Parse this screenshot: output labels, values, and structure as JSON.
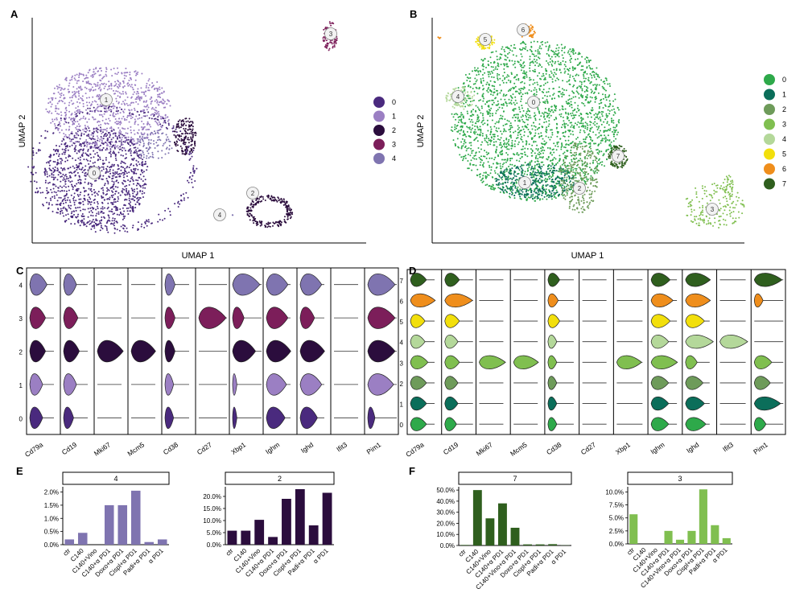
{
  "panels": {
    "A": {
      "label": "A",
      "xlabel": "UMAP 1",
      "ylabel": "UMAP 2",
      "legend": [
        {
          "id": "0",
          "color": "#4a2a7e"
        },
        {
          "id": "1",
          "color": "#9b7fc3"
        },
        {
          "id": "2",
          "color": "#2b0d3d"
        },
        {
          "id": "3",
          "color": "#7c1e5a"
        },
        {
          "id": "4",
          "color": "#7f74b0"
        }
      ],
      "cluster_labels": [
        "0",
        "1",
        "2",
        "3",
        "4"
      ]
    },
    "B": {
      "label": "B",
      "xlabel": "UMAP 1",
      "ylabel": "UMAP 2",
      "legend": [
        {
          "id": "0",
          "color": "#2ea94a"
        },
        {
          "id": "1",
          "color": "#0b6e5a"
        },
        {
          "id": "2",
          "color": "#6e9b5a"
        },
        {
          "id": "3",
          "color": "#80bf50"
        },
        {
          "id": "4",
          "color": "#b4d89a"
        },
        {
          "id": "5",
          "color": "#f2df0c"
        },
        {
          "id": "6",
          "color": "#ef8e1c"
        },
        {
          "id": "7",
          "color": "#2f5f1e"
        }
      ],
      "cluster_labels": [
        "0",
        "1",
        "2",
        "3",
        "4",
        "5",
        "6",
        "7"
      ]
    },
    "C": {
      "label": "C",
      "genes": [
        "Cd79a",
        "Cd19",
        "Mki67",
        "Mcm5",
        "Cd38",
        "Cd27",
        "Xbp1",
        "Ighm",
        "Ighd",
        "Ifit3",
        "Pim1"
      ],
      "clusters": [
        "4",
        "3",
        "2",
        "1",
        "0"
      ]
    },
    "D": {
      "label": "D",
      "genes": [
        "Cd79a",
        "Cd19",
        "Mki67",
        "Mcm5",
        "Cd38",
        "Cd27",
        "Xbp1",
        "Ighm",
        "Ighd",
        "Ifit3",
        "Pim1"
      ],
      "clusters": [
        "7",
        "6",
        "5",
        "4",
        "3",
        "2",
        "1",
        "0"
      ]
    },
    "E": {
      "label": "E"
    },
    "F": {
      "label": "F"
    }
  },
  "chart_data": [
    {
      "type": "bar",
      "panel": "E",
      "title": "4",
      "categories": [
        "ctr",
        "C140",
        "C140+Vino",
        "C140+α PD1",
        "Doxo+α PD1",
        "Cispl+α PD1",
        "Padi+α PD1",
        "α PD1"
      ],
      "values": [
        0.2,
        0.45,
        0.0,
        1.5,
        1.5,
        2.05,
        0.1,
        0.2
      ],
      "yticks": [
        "0.0%",
        "0.5%",
        "1.0%",
        "1.5%",
        "2.0%"
      ],
      "ylim": [
        0,
        2.2
      ],
      "color": "#7f74b0"
    },
    {
      "type": "bar",
      "panel": "E",
      "title": "2",
      "categories": [
        "ctr",
        "C140",
        "C140+Vino",
        "C140+α PD1",
        "Doxo+α PD1",
        "Cispl+α PD1",
        "Padi+α PD1",
        "α PD1"
      ],
      "values": [
        5.8,
        5.8,
        10.3,
        3.2,
        19.0,
        23.0,
        8.0,
        21.5
      ],
      "yticks": [
        "0.0%",
        "5.0%",
        "10.0%",
        "15.0%",
        "20.0%"
      ],
      "ylim": [
        0,
        24
      ],
      "color": "#2b0d3d"
    },
    {
      "type": "bar",
      "panel": "F",
      "title": "7",
      "categories": [
        "ctr",
        "C140",
        "C140+Vino",
        "C140+α PD1",
        "C140+Vino+α PD1",
        "Doxo+α PD1",
        "Cispl+α PD1",
        "Padi+α PD1",
        "α PD1"
      ],
      "values": [
        0.5,
        50.0,
        24.5,
        38.0,
        16.0,
        1.0,
        1.0,
        1.2,
        0.2
      ],
      "yticks": [
        "0.0%",
        "10.0%",
        "20.0%",
        "30.0%",
        "40.0%",
        "50.0%"
      ],
      "ylim": [
        0,
        53
      ],
      "color": "#2f5f1e"
    },
    {
      "type": "bar",
      "panel": "F",
      "title": "3",
      "categories": [
        "ctr",
        "C140",
        "C140+Vino",
        "C140+α PD1",
        "C140+Vino+α PD1",
        "Doxo+α PD1",
        "Cispl+α PD1",
        "Padi+α PD1",
        "α PD1"
      ],
      "values": [
        5.7,
        0.0,
        0.0,
        2.5,
        0.8,
        2.5,
        10.5,
        3.6,
        1.1
      ],
      "yticks": [
        "0.0%",
        "2.5%",
        "5.0%",
        "7.5%",
        "10.0%"
      ],
      "ylim": [
        0,
        11
      ],
      "color": "#80bf50"
    }
  ]
}
